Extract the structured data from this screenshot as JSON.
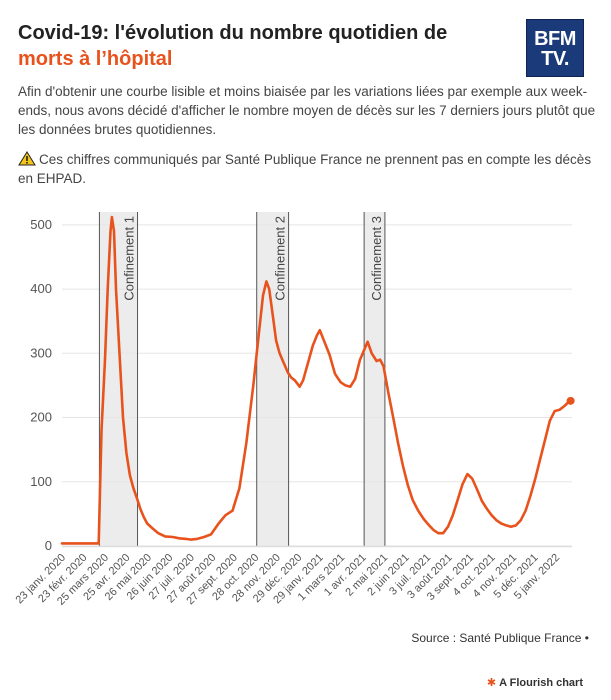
{
  "header": {
    "title_line1": "Covid-19: l'évolution du nombre quotidien de",
    "title_line2": "morts à l’hôpital",
    "logo_line1": "BFM",
    "logo_line2": "TV."
  },
  "description": "Afin d'obtenir une courbe lisible et moins biaisée par les variations liées par exemple aux week-ends, nous avons décidé d'afficher le nombre moyen de décès sur les 7 derniers jours plutôt que les données brutes quotidiennes.",
  "warning": {
    "icon": "warning-icon",
    "text": "Ces chiffres communiqués par Santé Publique France ne prennent pas en compte les décès en EHPAD."
  },
  "footer": {
    "source": "Source : Santé Publique France •",
    "credit": "A Flourish chart"
  },
  "colors": {
    "line": "#e8531d",
    "accent": "#e8531d",
    "band": "#e6e6e6",
    "logo": "#1a3a7a"
  },
  "chart_data": {
    "type": "line",
    "title": "",
    "xlabel": "",
    "ylabel": "",
    "ylim": [
      0,
      520
    ],
    "yticks": [
      0,
      100,
      200,
      300,
      400,
      500
    ],
    "xlim": [
      "2020-01-23",
      "2022-01-28"
    ],
    "grid": true,
    "xtick_labels": [
      {
        "date": "2020-01-23",
        "label": "23 janv. 2020"
      },
      {
        "date": "2020-02-23",
        "label": "23 févr. 2020"
      },
      {
        "date": "2020-03-25",
        "label": "25 mars 2020"
      },
      {
        "date": "2020-04-25",
        "label": "25 avr. 2020"
      },
      {
        "date": "2020-05-26",
        "label": "26 mai 2020"
      },
      {
        "date": "2020-06-26",
        "label": "26 juin 2020"
      },
      {
        "date": "2020-07-27",
        "label": "27 juil. 2020"
      },
      {
        "date": "2020-08-27",
        "label": "27 août 2020"
      },
      {
        "date": "2020-09-27",
        "label": "27 sept. 2020"
      },
      {
        "date": "2020-10-28",
        "label": "28 oct. 2020"
      },
      {
        "date": "2020-11-28",
        "label": "28 nov. 2020"
      },
      {
        "date": "2020-12-29",
        "label": "29 déc. 2020"
      },
      {
        "date": "2021-01-29",
        "label": "29 janv. 2021"
      },
      {
        "date": "2021-03-01",
        "label": "1 mars 2021"
      },
      {
        "date": "2021-04-01",
        "label": "1 avr. 2021"
      },
      {
        "date": "2021-05-02",
        "label": "2 mai 2021"
      },
      {
        "date": "2021-06-02",
        "label": "2 juin 2021"
      },
      {
        "date": "2021-07-03",
        "label": "3 juil. 2021"
      },
      {
        "date": "2021-08-03",
        "label": "3 août 2021"
      },
      {
        "date": "2021-09-03",
        "label": "3 sept. 2021"
      },
      {
        "date": "2021-10-04",
        "label": "4 oct. 2021"
      },
      {
        "date": "2021-11-04",
        "label": "4 nov. 2021"
      },
      {
        "date": "2021-12-05",
        "label": "5 déc. 2021"
      },
      {
        "date": "2022-01-05",
        "label": "5 janv. 2022"
      }
    ],
    "annotations": [
      {
        "label": "Confinement 1",
        "start": "2020-03-17",
        "end": "2020-05-11"
      },
      {
        "label": "Confinement 2",
        "start": "2020-10-30",
        "end": "2020-12-15"
      },
      {
        "label": "Confinement 3",
        "start": "2021-04-03",
        "end": "2021-05-03"
      }
    ],
    "series": [
      {
        "name": "",
        "points": [
          [
            "2020-01-23",
            4
          ],
          [
            "2020-03-15",
            4
          ],
          [
            "2020-03-16",
            4
          ],
          [
            "2020-03-20",
            180
          ],
          [
            "2020-03-25",
            290
          ],
          [
            "2020-03-29",
            400
          ],
          [
            "2020-04-02",
            490
          ],
          [
            "2020-04-04",
            512
          ],
          [
            "2020-04-07",
            490
          ],
          [
            "2020-04-10",
            400
          ],
          [
            "2020-04-15",
            300
          ],
          [
            "2020-04-20",
            200
          ],
          [
            "2020-04-25",
            145
          ],
          [
            "2020-04-30",
            110
          ],
          [
            "2020-05-05",
            90
          ],
          [
            "2020-05-10",
            75
          ],
          [
            "2020-05-15",
            58
          ],
          [
            "2020-05-20",
            45
          ],
          [
            "2020-05-25",
            35
          ],
          [
            "2020-06-01",
            28
          ],
          [
            "2020-06-10",
            20
          ],
          [
            "2020-06-20",
            15
          ],
          [
            "2020-07-01",
            14
          ],
          [
            "2020-07-10",
            12
          ],
          [
            "2020-07-20",
            11
          ],
          [
            "2020-07-27",
            10
          ],
          [
            "2020-08-05",
            11
          ],
          [
            "2020-08-15",
            14
          ],
          [
            "2020-08-25",
            18
          ],
          [
            "2020-09-05",
            35
          ],
          [
            "2020-09-15",
            48
          ],
          [
            "2020-09-25",
            55
          ],
          [
            "2020-10-05",
            90
          ],
          [
            "2020-10-15",
            160
          ],
          [
            "2020-10-25",
            250
          ],
          [
            "2020-11-02",
            330
          ],
          [
            "2020-11-08",
            390
          ],
          [
            "2020-11-13",
            412
          ],
          [
            "2020-11-17",
            400
          ],
          [
            "2020-11-22",
            360
          ],
          [
            "2020-11-27",
            320
          ],
          [
            "2020-12-02",
            300
          ],
          [
            "2020-12-08",
            285
          ],
          [
            "2020-12-14",
            270
          ],
          [
            "2020-12-19",
            262
          ],
          [
            "2020-12-24",
            258
          ],
          [
            "2020-12-31",
            248
          ],
          [
            "2021-01-05",
            258
          ],
          [
            "2021-01-12",
            285
          ],
          [
            "2021-01-19",
            312
          ],
          [
            "2021-01-25",
            328
          ],
          [
            "2021-01-29",
            336
          ],
          [
            "2021-02-04",
            320
          ],
          [
            "2021-02-12",
            298
          ],
          [
            "2021-02-20",
            268
          ],
          [
            "2021-02-28",
            255
          ],
          [
            "2021-03-07",
            250
          ],
          [
            "2021-03-14",
            248
          ],
          [
            "2021-03-21",
            260
          ],
          [
            "2021-03-28",
            290
          ],
          [
            "2021-04-03",
            305
          ],
          [
            "2021-04-08",
            318
          ],
          [
            "2021-04-14",
            300
          ],
          [
            "2021-04-21",
            288
          ],
          [
            "2021-04-26",
            290
          ],
          [
            "2021-05-01",
            280
          ],
          [
            "2021-05-08",
            238
          ],
          [
            "2021-05-15",
            200
          ],
          [
            "2021-05-22",
            160
          ],
          [
            "2021-05-29",
            125
          ],
          [
            "2021-06-05",
            95
          ],
          [
            "2021-06-12",
            72
          ],
          [
            "2021-06-20",
            55
          ],
          [
            "2021-06-28",
            42
          ],
          [
            "2021-07-05",
            33
          ],
          [
            "2021-07-12",
            25
          ],
          [
            "2021-07-19",
            20
          ],
          [
            "2021-07-26",
            20
          ],
          [
            "2021-08-02",
            30
          ],
          [
            "2021-08-09",
            48
          ],
          [
            "2021-08-16",
            72
          ],
          [
            "2021-08-23",
            96
          ],
          [
            "2021-08-30",
            112
          ],
          [
            "2021-09-06",
            105
          ],
          [
            "2021-09-13",
            88
          ],
          [
            "2021-09-20",
            70
          ],
          [
            "2021-09-27",
            58
          ],
          [
            "2021-10-04",
            48
          ],
          [
            "2021-10-11",
            40
          ],
          [
            "2021-10-18",
            35
          ],
          [
            "2021-10-25",
            32
          ],
          [
            "2021-11-01",
            30
          ],
          [
            "2021-11-08",
            32
          ],
          [
            "2021-11-15",
            40
          ],
          [
            "2021-11-22",
            55
          ],
          [
            "2021-11-29",
            78
          ],
          [
            "2021-12-06",
            105
          ],
          [
            "2021-12-13",
            135
          ],
          [
            "2021-12-20",
            165
          ],
          [
            "2021-12-27",
            195
          ],
          [
            "2022-01-03",
            210
          ],
          [
            "2022-01-10",
            212
          ],
          [
            "2022-01-17",
            218
          ],
          [
            "2022-01-24",
            225
          ],
          [
            "2022-01-26",
            226
          ]
        ]
      }
    ]
  }
}
